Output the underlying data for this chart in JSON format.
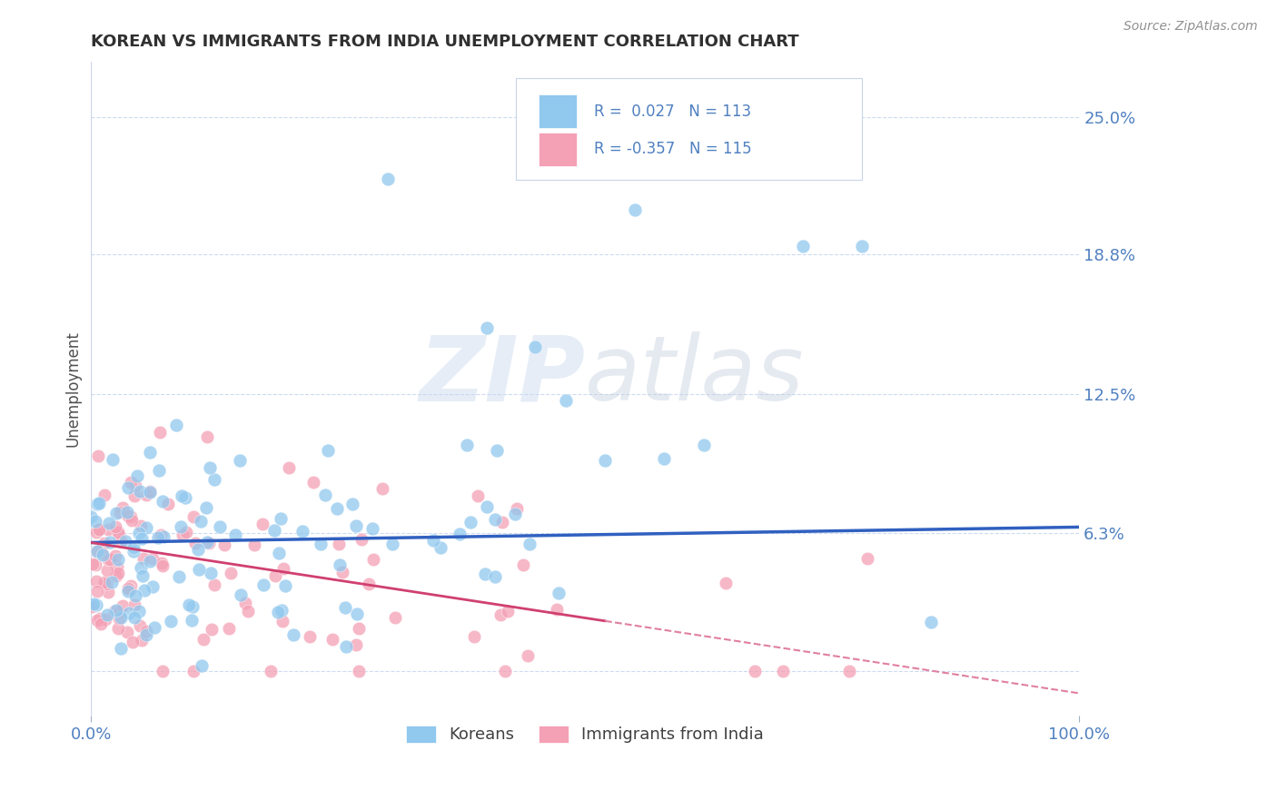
{
  "title": "KOREAN VS IMMIGRANTS FROM INDIA UNEMPLOYMENT CORRELATION CHART",
  "source": "Source: ZipAtlas.com",
  "ylabel": "Unemployment",
  "xlabel": "",
  "xlim": [
    0.0,
    1.0
  ],
  "ylim": [
    -0.02,
    0.275
  ],
  "ytick_vals": [
    0.0,
    0.0625,
    0.125,
    0.188,
    0.25
  ],
  "ytick_labels": [
    "",
    "6.3%",
    "12.5%",
    "18.8%",
    "25.0%"
  ],
  "xtick_vals": [
    0.0,
    1.0
  ],
  "xtick_labels": [
    "0.0%",
    "100.0%"
  ],
  "korean_color": "#90C8EE",
  "india_color": "#F4A0B5",
  "korean_trend_color": "#3060C0",
  "india_trend_color": "#D04070",
  "india_trend_dash_color": "#E080A0",
  "background_color": "#FFFFFF",
  "grid_color": "#C8D8F0",
  "watermark_zip": "ZIP",
  "watermark_atlas": "atlas",
  "title_color": "#303030",
  "axis_label_color": "#5080C0",
  "source_color": "#909090",
  "ylabel_color": "#505050"
}
